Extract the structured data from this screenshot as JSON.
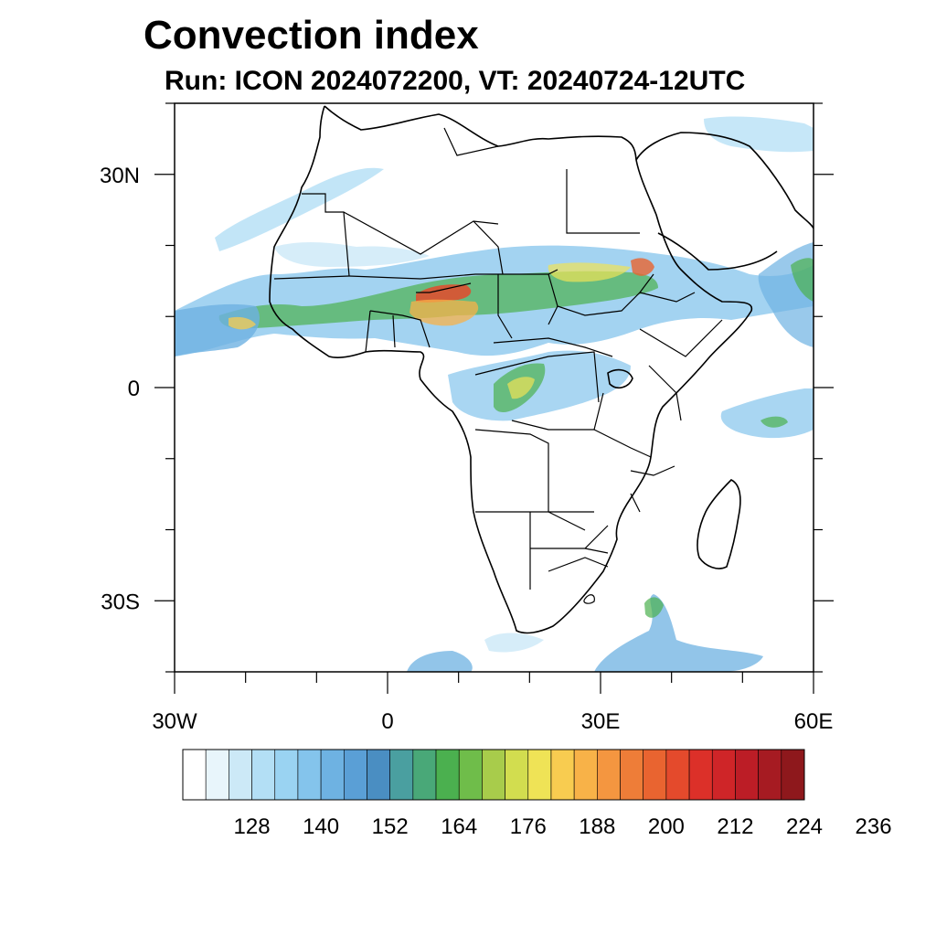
{
  "title": "Convection index",
  "subtitle": "Run: ICON 2024072200,  VT: 20240724-12UTC",
  "map": {
    "region": "Africa",
    "lon_range": [
      -30,
      60
    ],
    "lat_range": [
      -40,
      40
    ],
    "x_ticks": [
      {
        "value": -30,
        "label": "30W"
      },
      {
        "value": 0,
        "label": "0"
      },
      {
        "value": 30,
        "label": "30E"
      },
      {
        "value": 60,
        "label": "60E"
      }
    ],
    "y_ticks": [
      {
        "value": 30,
        "label": "30N"
      },
      {
        "value": 0,
        "label": "0"
      },
      {
        "value": -30,
        "label": "30S"
      }
    ]
  },
  "colorbar": {
    "colors": [
      "#ffffff",
      "#e8f5fb",
      "#cce9f7",
      "#b3dff5",
      "#9ad3f2",
      "#84c4ec",
      "#6eb2e2",
      "#5a9fd6",
      "#4a8ec2",
      "#4a9fa0",
      "#49a878",
      "#4bb04f",
      "#6fbd4a",
      "#a8cc4b",
      "#d2dd4f",
      "#efe356",
      "#f8cc50",
      "#f8b248",
      "#f49640",
      "#ee7d38",
      "#e96430",
      "#e44a2c",
      "#dc3029",
      "#cf2528",
      "#bc1d26",
      "#a61b22",
      "#8e181c"
    ],
    "tick_labels": [
      "128",
      "140",
      "152",
      "164",
      "176",
      "188",
      "200",
      "212",
      "224",
      "236"
    ]
  }
}
